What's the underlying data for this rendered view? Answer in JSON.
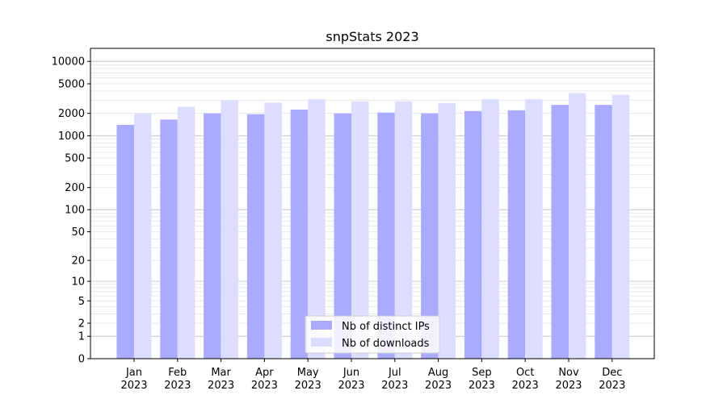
{
  "chart_data": {
    "type": "bar",
    "title": "snpStats 2023",
    "xlabel": "",
    "ylabel": "",
    "scale": "symlog",
    "ylim": [
      0,
      15000
    ],
    "grid": true,
    "legend_position": "bottom-center",
    "categories": [
      [
        "Jan",
        "2023"
      ],
      [
        "Feb",
        "2023"
      ],
      [
        "Mar",
        "2023"
      ],
      [
        "Apr",
        "2023"
      ],
      [
        "May",
        "2023"
      ],
      [
        "Jun",
        "2023"
      ],
      [
        "Jul",
        "2023"
      ],
      [
        "Aug",
        "2023"
      ],
      [
        "Sep",
        "2023"
      ],
      [
        "Oct",
        "2023"
      ],
      [
        "Nov",
        "2023"
      ],
      [
        "Dec",
        "2023"
      ]
    ],
    "yticks": [
      0,
      1,
      2,
      5,
      10,
      20,
      50,
      100,
      200,
      500,
      1000,
      2000,
      5000,
      10000
    ],
    "ytick_labels": [
      "0",
      "1",
      "2",
      "5",
      "10",
      "20",
      "50",
      "100",
      "200",
      "500",
      "1000",
      "2000",
      "5000",
      "10000"
    ],
    "series": [
      {
        "name": "Nb of distinct IPs",
        "color": "#aaaaff",
        "values": [
          1400,
          1650,
          2000,
          1950,
          2250,
          2000,
          2050,
          2000,
          2150,
          2200,
          2600,
          2600
        ]
      },
      {
        "name": "Nb of downloads",
        "color": "#ddddff",
        "values": [
          2000,
          2450,
          3000,
          2800,
          3100,
          2900,
          2900,
          2750,
          3100,
          3100,
          3750,
          3550
        ]
      }
    ]
  }
}
